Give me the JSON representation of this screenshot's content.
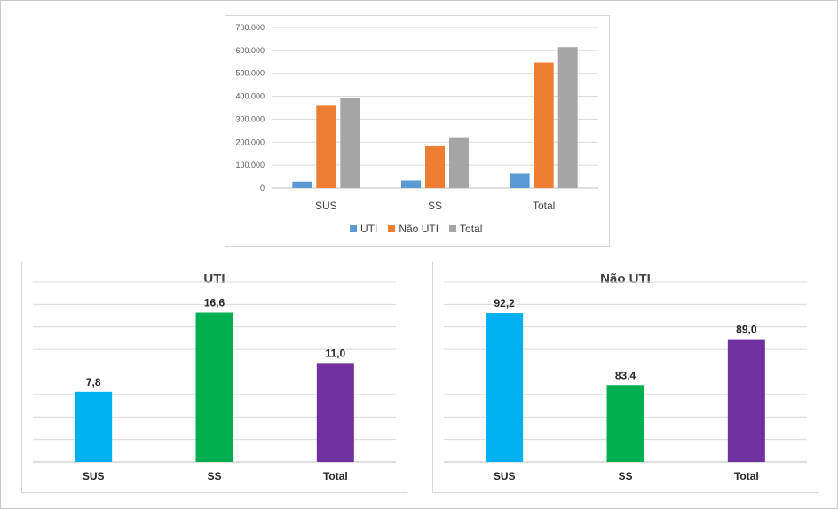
{
  "chart_data": [
    {
      "type": "bar",
      "categories": [
        "SUS",
        "SS",
        "Total"
      ],
      "series": [
        {
          "name": "UTI",
          "color": "#5b9bd5",
          "values": [
            28000,
            33000,
            64000
          ]
        },
        {
          "name": "Não UTI",
          "color": "#ed7d31",
          "values": [
            362000,
            182000,
            547000
          ]
        },
        {
          "name": "Total",
          "color": "#a5a5a5",
          "values": [
            392000,
            218000,
            614000
          ]
        }
      ],
      "y_ticks": [
        "0",
        "100.000",
        "200.000",
        "300.000",
        "400.000",
        "500.000",
        "600.000",
        "700.000"
      ],
      "ylim": [
        0,
        700000
      ],
      "title": "",
      "grid": true,
      "legend": "bottom"
    },
    {
      "type": "bar",
      "title": "UTI",
      "categories": [
        "SUS",
        "SS",
        "Total"
      ],
      "values": [
        7.8,
        16.6,
        11.0
      ],
      "data_labels": [
        "7,8",
        "16,6",
        "11,0"
      ],
      "colors": [
        "#00b0f0",
        "#00b050",
        "#7030a0"
      ],
      "ylim": [
        0,
        20
      ],
      "grid": true
    },
    {
      "type": "bar",
      "title": "Não UTI",
      "categories": [
        "SUS",
        "SS",
        "Total"
      ],
      "values": [
        92.2,
        83.4,
        89.0
      ],
      "data_labels": [
        "92,2",
        "83,4",
        "89,0"
      ],
      "colors": [
        "#00b0f0",
        "#00b050",
        "#7030a0"
      ],
      "ylim": [
        74,
        96
      ],
      "grid": true
    }
  ]
}
